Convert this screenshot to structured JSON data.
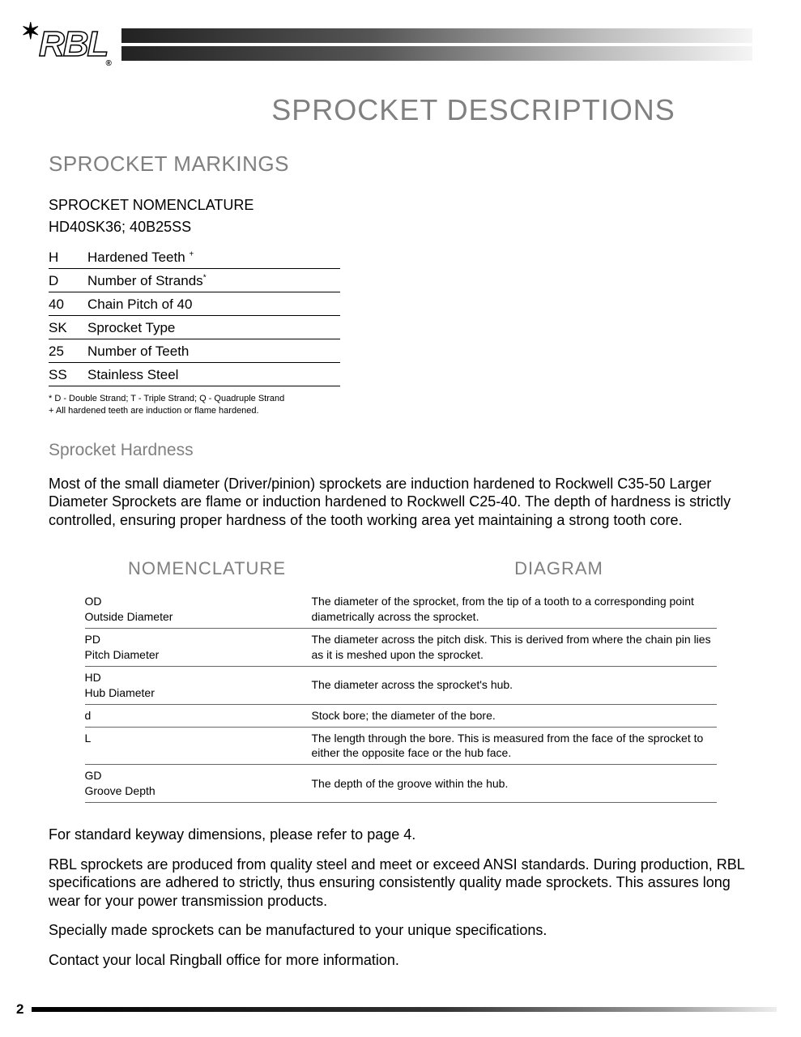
{
  "logo_text": "RBL",
  "page_title": "SPROCKET DESCRIPTIONS",
  "section_markings": "SPROCKET MARKINGS",
  "subsection_nomenclature": "SPROCKET NOMENCLATURE",
  "nomenclature_code": "HD40SK36;  40B25SS",
  "nomen_rows": [
    {
      "code": "H",
      "desc": "Hardened Teeth ",
      "sup": "+"
    },
    {
      "code": "D",
      "desc": "Number of Strands",
      "sup": "*"
    },
    {
      "code": "40",
      "desc": "Chain Pitch of 40",
      "sup": ""
    },
    {
      "code": "SK",
      "desc": "Sprocket Type",
      "sup": ""
    },
    {
      "code": "25",
      "desc": "Number of Teeth",
      "sup": ""
    },
    {
      "code": "SS",
      "desc": "Stainless Steel",
      "sup": ""
    }
  ],
  "footnote1": "* D -  Double Strand; T -  Triple Strand; Q -  Quadruple Strand",
  "footnote2": "+ All hardened teeth are induction or flame hardened.",
  "hardness_heading": "Sprocket Hardness",
  "hardness_body": "Most  of the small diameter (Driver/pinion) sprockets are induction hardened to Rockwell C35-50 Larger Diameter Sprockets are flame or induction hardened to Rockwell C25-40. The depth of hardness is strictly controlled, ensuring proper hardness of the tooth working area yet maintaining a strong tooth core.",
  "col_head_left": "NOMENCLATURE",
  "col_head_right": "DIAGRAM",
  "diagram_rows": [
    {
      "abbr": "OD",
      "full": "Outside Diameter",
      "desc": "The diameter of the sprocket, from the tip of a tooth to a corresponding point diametrically across the sprocket."
    },
    {
      "abbr": "PD",
      "full": "Pitch Diameter",
      "desc": "The diameter across the pitch disk.  This is derived from where the chain pin lies as it is meshed upon the sprocket."
    },
    {
      "abbr": "HD",
      "full": "Hub Diameter",
      "desc": "The diameter across the sprocket's hub."
    },
    {
      "abbr": "d",
      "full": "",
      "desc": "Stock bore; the diameter of the bore."
    },
    {
      "abbr": "L",
      "full": "",
      "desc": "The length through the bore.  This is measured from the face of the sprocket to either the opposite face or the hub face."
    },
    {
      "abbr": "GD",
      "full": "Groove Depth",
      "desc": "The depth of the groove within the hub."
    }
  ],
  "body_para1": "For standard keyway dimensions, please refer to page 4.",
  "body_para2": "RBL sprockets are produced from quality steel and meet or exceed ANSI standards.  During production, RBL specifications are adhered to strictly, thus ensuring consistently quality made sprockets.  This assures long wear for your power transmission products.",
  "body_para3": "Specially made sprockets can be manufactured to your unique specifications.",
  "body_para4": "Contact your local Ringball office for more information.",
  "page_number": "2"
}
